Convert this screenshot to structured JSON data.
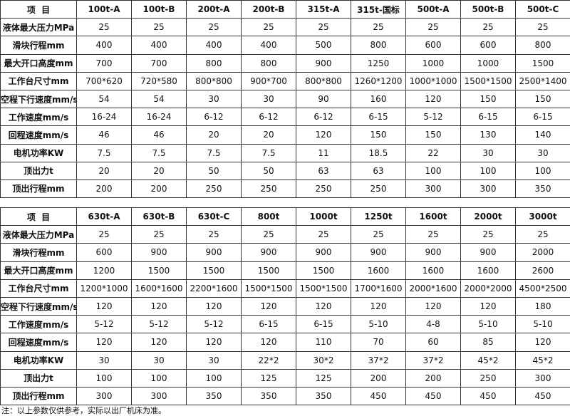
{
  "tables": [
    {
      "header": [
        "项  目",
        "100t-A",
        "100t-B",
        "200t-A",
        "200t-B",
        "315t-A",
        "315t-国标",
        "500t-A",
        "500t-B",
        "500t-C"
      ],
      "rows": [
        [
          "液体最大压力MPa",
          "25",
          "25",
          "25",
          "25",
          "25",
          "25",
          "25",
          "25",
          "25"
        ],
        [
          "滑块行程mm",
          "400",
          "400",
          "400",
          "400",
          "500",
          "800",
          "600",
          "600",
          "800"
        ],
        [
          "最大开口高度mm",
          "700",
          "700",
          "800",
          "800",
          "900",
          "1250",
          "1000",
          "1000",
          "1500"
        ],
        [
          "工作台尺寸mm",
          "700*620",
          "720*580",
          "800*800",
          "900*700",
          "800*800",
          "1260*1200",
          "1000*1000",
          "1500*1500",
          "2500*1400"
        ],
        [
          "空程下行速度mm/s",
          "54",
          "54",
          "30",
          "30",
          "90",
          "160",
          "120",
          "150",
          "150"
        ],
        [
          "工作速度mm/s",
          "16-24",
          "16-24",
          "6-12",
          "6-12",
          "6-12",
          "6-15",
          "5-12",
          "6-15",
          "6-15"
        ],
        [
          "回程速度mm/s",
          "46",
          "46",
          "20",
          "20",
          "120",
          "150",
          "150",
          "130",
          "140"
        ],
        [
          "电机功率KW",
          "7.5",
          "7.5",
          "7.5",
          "7.5",
          "11",
          "18.5",
          "22",
          "30",
          "30"
        ],
        [
          "顶出力t",
          "20",
          "20",
          "50",
          "50",
          "63",
          "63",
          "100",
          "100",
          "100"
        ],
        [
          "顶出行程mm",
          "200",
          "200",
          "250",
          "250",
          "250",
          "250",
          "300",
          "300",
          "350"
        ]
      ]
    },
    {
      "header": [
        "项  目",
        "630t-A",
        "630t-B",
        "630t-C",
        "800t",
        "1000t",
        "1250t",
        "1600t",
        "2000t",
        "3000t"
      ],
      "rows": [
        [
          "液体最大压力MPa",
          "25",
          "25",
          "25",
          "25",
          "25",
          "25",
          "25",
          "25",
          "25"
        ],
        [
          "滑块行程mm",
          "600",
          "900",
          "900",
          "900",
          "900",
          "900",
          "900",
          "900",
          "2000"
        ],
        [
          "最大开口高度mm",
          "1200",
          "1500",
          "1500",
          "1500",
          "1500",
          "1600",
          "1600",
          "1600",
          "2600"
        ],
        [
          "工作台尺寸mm",
          "1200*1000",
          "1600*1600",
          "2200*1600",
          "1500*1500",
          "1500*1500",
          "1700*1600",
          "2000*1600",
          "2000*2000",
          "4500*2500"
        ],
        [
          "空程下行速度mm/s",
          "120",
          "120",
          "120",
          "120",
          "120",
          "120",
          "120",
          "120",
          "180"
        ],
        [
          "工作速度mm/s",
          "5-12",
          "5-12",
          "5-12",
          "6-15",
          "6-15",
          "5-10",
          "4-8",
          "5-10",
          "5-10"
        ],
        [
          "回程速度mm/s",
          "120",
          "120",
          "120",
          "120",
          "110",
          "70",
          "60",
          "85",
          "120"
        ],
        [
          "电机功率KW",
          "30",
          "30",
          "30",
          "22*2",
          "30*2",
          "37*2",
          "37*2",
          "45*2",
          "45*2"
        ],
        [
          "顶出力t",
          "100",
          "100",
          "100",
          "125",
          "125",
          "200",
          "200",
          "250",
          "300"
        ],
        [
          "顶出行程mm",
          "300",
          "300",
          "350",
          "350",
          "350",
          "450",
          "450",
          "450",
          "450"
        ]
      ]
    }
  ],
  "note": "注：以上参数仅供参考，实际以出厂机床为准。"
}
